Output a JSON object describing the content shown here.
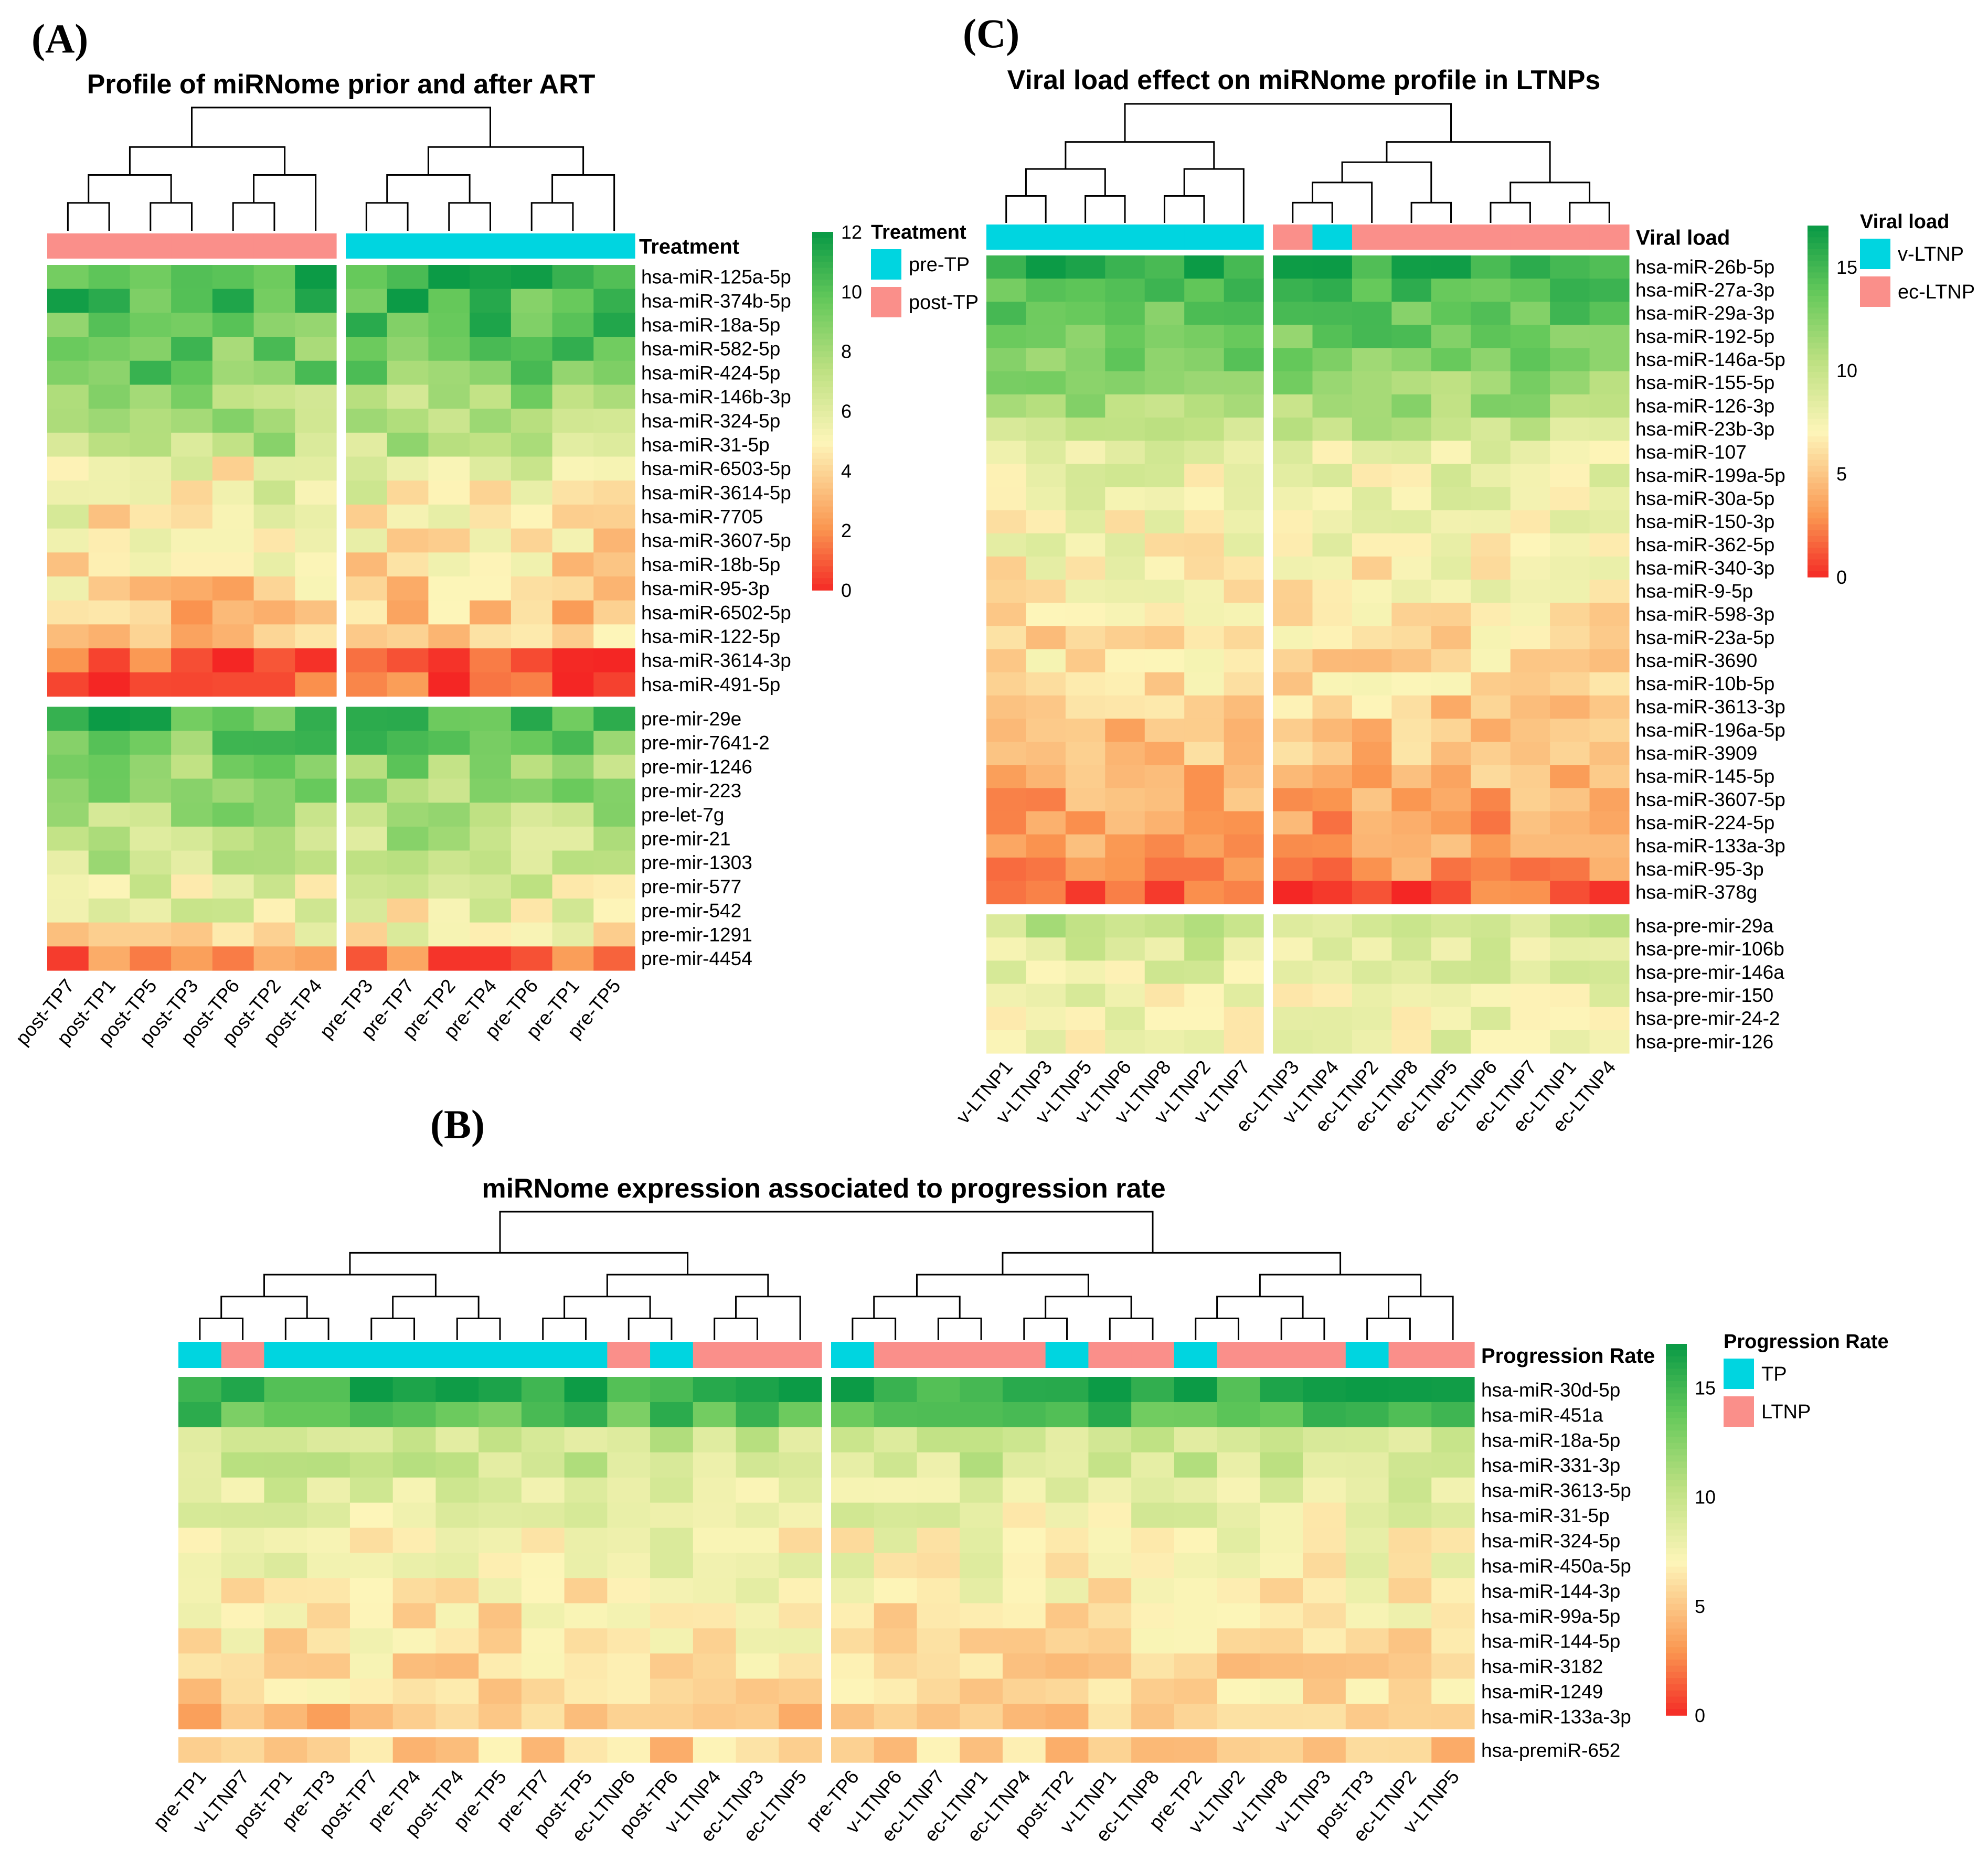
{
  "panels": [
    {
      "id": "A",
      "label": "(A)",
      "title": "Profile of miRNome prior and after ART",
      "annotation_label": "Treatment",
      "legend": {
        "title": "Treatment",
        "items": [
          {
            "label": "pre-TP",
            "color": "#00D5E0"
          },
          {
            "label": "post-TP",
            "color": "#FA8F8A"
          }
        ]
      },
      "colorbar": {
        "ticks": [
          "0",
          "2",
          "4",
          "6",
          "8",
          "10",
          "12"
        ],
        "range": [
          0,
          12
        ]
      },
      "columns": [
        "post-TP7",
        "post-TP1",
        "post-TP5",
        "post-TP3",
        "post-TP6",
        "post-TP2",
        "post-TP4",
        "pre-TP3",
        "pre-TP7",
        "pre-TP2",
        "pre-TP4",
        "pre-TP6",
        "pre-TP1",
        "pre-TP5"
      ],
      "column_groups": [
        "post",
        "post",
        "post",
        "post",
        "post",
        "post",
        "post",
        "pre",
        "pre",
        "pre",
        "pre",
        "pre",
        "pre",
        "pre"
      ],
      "column_split_after": 7,
      "rows": [
        "hsa-miR-125a-5p",
        "hsa-miR-374b-5p",
        "hsa-miR-18a-5p",
        "hsa-miR-582-5p",
        "hsa-miR-424-5p",
        "hsa-miR-146b-3p",
        "hsa-miR-324-5p",
        "hsa-miR-31-5p",
        "hsa-miR-6503-5p",
        "hsa-miR-3614-5p",
        "hsa-miR-7705",
        "hsa-miR-3607-5p",
        "hsa-miR-18b-5p",
        "hsa-miR-95-3p",
        "hsa-miR-6502-5p",
        "hsa-miR-122-5p",
        "hsa-miR-3614-3p",
        "hsa-miR-491-5p",
        "pre-mir-29e",
        "pre-mir-7641-2",
        "pre-mir-1246",
        "pre-mir-223",
        "pre-let-7g",
        "pre-mir-21",
        "pre-mir-1303",
        "pre-mir-577",
        "pre-mir-542",
        "pre-mir-1291",
        "pre-mir-4454"
      ],
      "row_split_after": 18,
      "row_base": [
        11,
        10.5,
        10,
        9.5,
        9.5,
        8,
        7.5,
        7.5,
        5.5,
        5.5,
        5,
        4.5,
        4.5,
        4,
        3.5,
        3.5,
        0.8,
        0.8,
        10.5,
        9.5,
        8.5,
        8.5,
        8,
        7.5,
        7,
        6,
        5.5,
        5,
        1.5
      ]
    },
    {
      "id": "C",
      "label": "(C)",
      "title": "Viral load effect on miRNome profile in LTNPs",
      "annotation_label": "Viral load",
      "legend": {
        "title": "Viral load",
        "items": [
          {
            "label": "v-LTNP",
            "color": "#00D5E0"
          },
          {
            "label": "ec-LTNP",
            "color": "#FA8F8A"
          }
        ]
      },
      "colorbar": {
        "ticks": [
          "0",
          "5",
          "10",
          "15"
        ],
        "range": [
          0,
          17
        ]
      },
      "columns": [
        "v-LTNP1",
        "v-LTNP3",
        "v-LTNP5",
        "v-LTNP6",
        "v-LTNP8",
        "v-LTNP2",
        "v-LTNP7",
        "ec-LTNP3",
        "v-LTNP4",
        "ec-LTNP2",
        "ec-LTNP8",
        "ec-LTNP5",
        "ec-LTNP6",
        "ec-LTNP7",
        "ec-LTNP1",
        "ec-LTNP4"
      ],
      "column_groups": [
        "v",
        "v",
        "v",
        "v",
        "v",
        "v",
        "v",
        "ec",
        "v",
        "ec",
        "ec",
        "ec",
        "ec",
        "ec",
        "ec",
        "ec"
      ],
      "column_split_after": 7,
      "rows": [
        "hsa-miR-26b-5p",
        "hsa-miR-27a-3p",
        "hsa-miR-29a-3p",
        "hsa-miR-192-5p",
        "hsa-miR-146a-5p",
        "hsa-miR-155-5p",
        "hsa-miR-126-3p",
        "hsa-miR-23b-3p",
        "hsa-miR-107",
        "hsa-miR-199a-5p",
        "hsa-miR-30a-5p",
        "hsa-miR-150-3p",
        "hsa-miR-362-5p",
        "hsa-miR-340-3p",
        "hsa-miR-9-5p",
        "hsa-miR-598-3p",
        "hsa-miR-23a-5p",
        "hsa-miR-3690",
        "hsa-miR-10b-5p",
        "hsa-miR-3613-3p",
        "hsa-miR-196a-5p",
        "hsa-miR-3909",
        "hsa-miR-145-5p",
        "hsa-miR-3607-5p",
        "hsa-miR-224-5p",
        "hsa-miR-133a-3p",
        "hsa-miR-95-3p",
        "hsa-miR-378g",
        "hsa-pre-mir-29a",
        "hsa-pre-mir-106b",
        "hsa-pre-mir-146a",
        "hsa-pre-mir-150",
        "hsa-pre-mir-24-2",
        "hsa-pre-mir-126"
      ],
      "row_split_after": 28,
      "row_base": [
        16,
        14.5,
        14,
        13.5,
        13,
        12,
        11.5,
        10,
        8.5,
        8,
        8,
        7.5,
        7.5,
        7,
        7,
        6.5,
        6,
        6,
        6,
        5.5,
        5,
        5,
        4.5,
        4,
        3.5,
        3.5,
        3,
        1.5,
        10,
        9,
        8.5,
        8,
        8,
        8
      ]
    },
    {
      "id": "B",
      "label": "(B)",
      "title": "miRNome expression associated to progression rate",
      "annotation_label": "Progression Rate",
      "legend": {
        "title": "Progression Rate",
        "items": [
          {
            "label": "TP",
            "color": "#00D5E0"
          },
          {
            "label": "LTNP",
            "color": "#FA8F8A"
          }
        ]
      },
      "colorbar": {
        "ticks": [
          "0",
          "5",
          "10",
          "15"
        ],
        "range": [
          0,
          17
        ]
      },
      "columns": [
        "pre-TP1",
        "v-LTNP7",
        "post-TP1",
        "pre-TP3",
        "post-TP7",
        "pre-TP4",
        "post-TP4",
        "pre-TP5",
        "pre-TP7",
        "post-TP5",
        "ec-LTNP6",
        "post-TP6",
        "v-LTNP4",
        "ec-LTNP3",
        "ec-LTNP5",
        "pre-TP6",
        "v-LTNP6",
        "ec-LTNP7",
        "ec-LTNP1",
        "ec-LTNP4",
        "post-TP2",
        "v-LTNP1",
        "ec-LTNP8",
        "pre-TP2",
        "v-LTNP2",
        "v-LTNP8",
        "v-LTNP3",
        "post-TP3",
        "ec-LTNP2",
        "v-LTNP5"
      ],
      "column_groups": [
        "TP",
        "LTNP",
        "TP",
        "TP",
        "TP",
        "TP",
        "TP",
        "TP",
        "TP",
        "TP",
        "LTNP",
        "TP",
        "LTNP",
        "LTNP",
        "LTNP",
        "TP",
        "LTNP",
        "LTNP",
        "LTNP",
        "LTNP",
        "TP",
        "LTNP",
        "LTNP",
        "TP",
        "LTNP",
        "LTNP",
        "LTNP",
        "TP",
        "LTNP",
        "LTNP"
      ],
      "column_split_after": 15,
      "rows": [
        "hsa-miR-30d-5p",
        "hsa-miR-451a",
        "hsa-miR-18a-5p",
        "hsa-miR-331-3p",
        "hsa-miR-3613-5p",
        "hsa-miR-31-5p",
        "hsa-miR-324-5p",
        "hsa-miR-450a-5p",
        "hsa-miR-144-3p",
        "hsa-miR-99a-5p",
        "hsa-miR-144-5p",
        "hsa-miR-3182",
        "hsa-miR-1249",
        "hsa-miR-133a-3p",
        "hsa-premiR-652"
      ],
      "row_split_after": 14,
      "row_base": [
        16,
        14.5,
        10,
        9.5,
        8.5,
        8,
        7.5,
        7.5,
        7,
        6.5,
        6.5,
        6,
        6,
        5,
        5.5
      ]
    }
  ]
}
